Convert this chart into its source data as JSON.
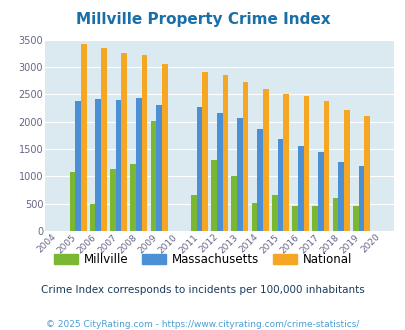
{
  "title": "Millville Property Crime Index",
  "years": [
    2004,
    2005,
    2006,
    2007,
    2008,
    2009,
    2010,
    2011,
    2012,
    2013,
    2014,
    2015,
    2016,
    2017,
    2018,
    2019,
    2020
  ],
  "millville": [
    0,
    1070,
    490,
    1140,
    1220,
    2010,
    0,
    660,
    1305,
    1010,
    510,
    660,
    450,
    450,
    595,
    450,
    0
  ],
  "massachusetts": [
    0,
    2380,
    2410,
    2400,
    2440,
    2310,
    0,
    2260,
    2160,
    2060,
    1860,
    1680,
    1560,
    1450,
    1260,
    1180,
    0
  ],
  "national": [
    0,
    3420,
    3340,
    3260,
    3210,
    3050,
    0,
    2900,
    2860,
    2720,
    2600,
    2500,
    2470,
    2380,
    2210,
    2110,
    0
  ],
  "millville_color": "#7ab834",
  "massachusetts_color": "#4b8fd4",
  "national_color": "#f5a623",
  "bg_color": "#daeaf0",
  "ylim": [
    0,
    3500
  ],
  "yticks": [
    0,
    500,
    1000,
    1500,
    2000,
    2500,
    3000,
    3500
  ],
  "subtitle": "Crime Index corresponds to incidents per 100,000 inhabitants",
  "footer": "© 2025 CityRating.com - https://www.cityrating.com/crime-statistics/",
  "title_color": "#1a6fa8",
  "subtitle_color": "#1a3a5c",
  "footer_color": "#4b9ed6",
  "bar_width": 0.28
}
